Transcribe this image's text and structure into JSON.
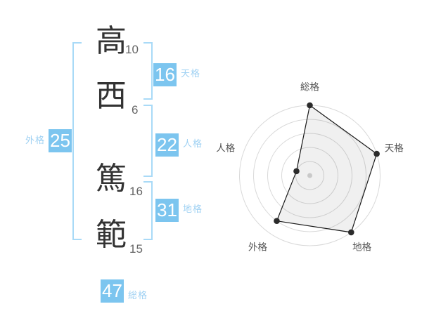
{
  "name": {
    "characters": [
      {
        "char": "高",
        "strokes": "10"
      },
      {
        "char": "西",
        "strokes": "6"
      },
      {
        "char": "篤",
        "strokes": "16"
      },
      {
        "char": "範",
        "strokes": "15"
      }
    ]
  },
  "kaku": {
    "tenkaku": {
      "value": "16",
      "label": "天格"
    },
    "jinkaku": {
      "value": "22",
      "label": "人格"
    },
    "chikaku": {
      "value": "31",
      "label": "地格"
    },
    "gaikaku": {
      "value": "25",
      "label": "外格"
    },
    "soukaku": {
      "value": "47",
      "label": "総格"
    }
  },
  "colors": {
    "accent_box_blue": "#7cc5ef",
    "label_blue": "#9fd1f3",
    "bracket_blue": "#a9daf7",
    "character_text": "#333333",
    "stroke_number_text": "#666666"
  },
  "chart_data": {
    "type": "radar",
    "axes": [
      "総格",
      "天格",
      "地格",
      "外格",
      "人格"
    ],
    "values": [
      5,
      5,
      5,
      4,
      1
    ],
    "max": 5,
    "rings": 5,
    "related_kaku_numbers": [
      47,
      16,
      31,
      25,
      22
    ],
    "start_angle_deg": -90,
    "direction": "clockwise",
    "grid": "concentric-circles",
    "legend": "none",
    "colors": {
      "ring": "#d9d9d9",
      "area_fill": "rgba(0,0,0,0.06)",
      "area_stroke": "#1a1a1a",
      "point": "#2b2b2b",
      "center_dot": "#c9c9c9",
      "axis_label": "#555555"
    }
  }
}
